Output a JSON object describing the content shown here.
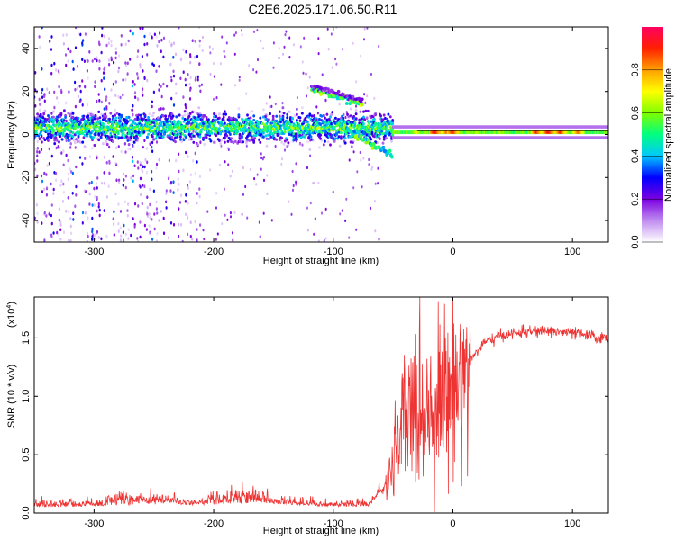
{
  "figure": {
    "title": "C2E6.2025.171.06.50.R11"
  },
  "chart_data": [
    {
      "type": "heatmap",
      "xlabel": "Height of straight line (km)",
      "ylabel": "Frequency (Hz)",
      "xlim": [
        -350,
        130
      ],
      "ylim": [
        -50,
        50
      ],
      "x_ticks": [
        -300,
        -200,
        -100,
        0,
        100
      ],
      "y_ticks": [
        -40,
        -20,
        0,
        20,
        40
      ],
      "colorbar": {
        "label": "Normalized spectral amplitude",
        "range": [
          0,
          1
        ],
        "ticks": [
          0.0,
          0.2,
          0.4,
          0.6,
          0.8
        ],
        "tick_labels": [
          "0.0",
          "0.2",
          "0.4",
          "0.6",
          "0.8"
        ],
        "colors": [
          "#ffffff",
          "#c08cf0",
          "#7a00e0",
          "#0000ff",
          "#00c8ff",
          "#00ff80",
          "#80ff00",
          "#ffff00",
          "#ffa000",
          "#ff2000",
          "#ff0060"
        ]
      },
      "features": {
        "main_band": {
          "x_range": [
            -350,
            -50
          ],
          "freq_center": 3,
          "freq_halfwidth": 6
        },
        "upper_branch": {
          "x_start": -118,
          "x_end": -75,
          "freq_start": 21,
          "freq_end": 14
        },
        "descending_branch": {
          "x_start": -95,
          "x_end": -50,
          "freq_start": 4,
          "freq_end": -10
        },
        "line_band": {
          "x_range": [
            -50,
            130
          ],
          "freq_center": 1,
          "freq_halfwidth": 2
        }
      }
    },
    {
      "type": "line",
      "xlabel": "Height of straight line (km)",
      "ylabel": "SNR (10 * v/v)",
      "y_multiplier": "(x10",
      "y_multiplier_exp": "4",
      "y_multiplier_close": ")",
      "xlim": [
        -350,
        130
      ],
      "ylim": [
        0,
        1.85
      ],
      "x_ticks": [
        -300,
        -200,
        -100,
        0,
        100
      ],
      "y_ticks": [
        0.0,
        0.5,
        1.0,
        1.5
      ],
      "y_tick_labels": [
        "0.0",
        "0.5",
        "1.0",
        "1.5"
      ],
      "color": "#ee3333",
      "key_points": [
        {
          "x": -350,
          "y": 0.05
        },
        {
          "x": -280,
          "y": 0.06
        },
        {
          "x": -200,
          "y": 0.07
        },
        {
          "x": -150,
          "y": 0.08
        },
        {
          "x": -100,
          "y": 0.05
        },
        {
          "x": -70,
          "y": 0.06
        },
        {
          "x": -55,
          "y": 0.25
        },
        {
          "x": -45,
          "y": 0.6
        },
        {
          "x": -35,
          "y": 0.9
        },
        {
          "x": -20,
          "y": 0.9
        },
        {
          "x": -10,
          "y": 1.0
        },
        {
          "x": 0,
          "y": 1.05
        },
        {
          "x": 10,
          "y": 1.25
        },
        {
          "x": 25,
          "y": 1.45
        },
        {
          "x": 40,
          "y": 1.52
        },
        {
          "x": 60,
          "y": 1.55
        },
        {
          "x": 80,
          "y": 1.56
        },
        {
          "x": 100,
          "y": 1.54
        },
        {
          "x": 130,
          "y": 1.49
        }
      ]
    }
  ]
}
